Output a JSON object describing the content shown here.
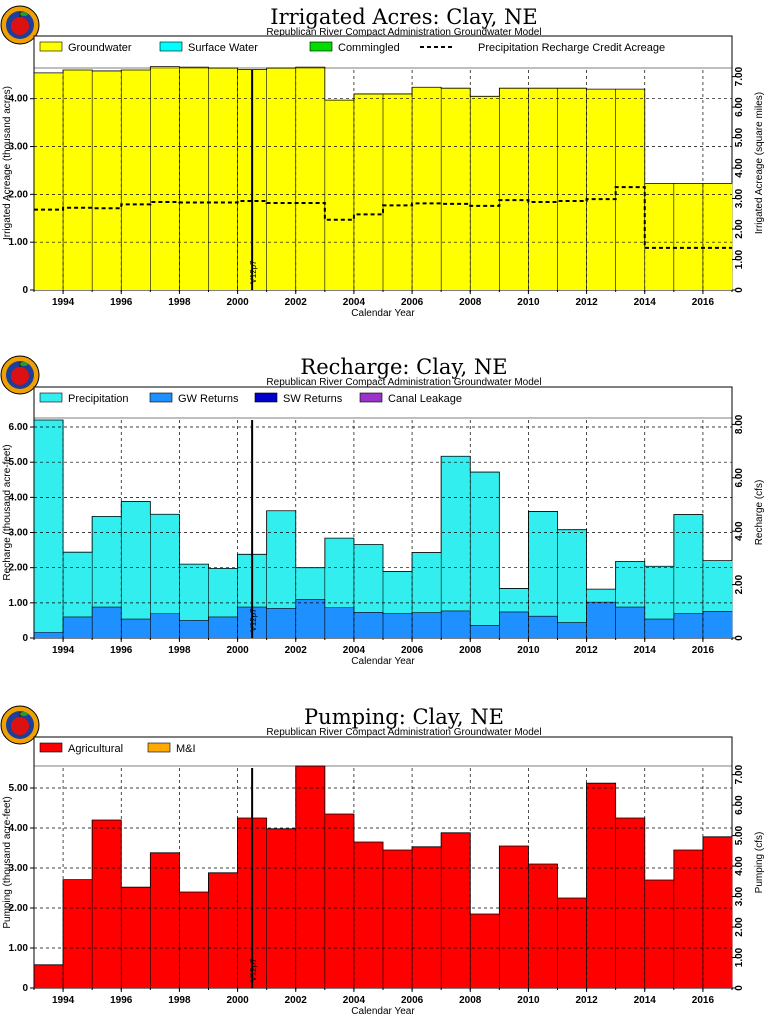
{
  "colors": {
    "groundwater": "#ffff00",
    "surface_water": "#00ffff",
    "commingled": "#00dd00",
    "precipitation": "#33eeee",
    "gw_returns": "#1e90ff",
    "sw_returns": "#0000cc",
    "canal_leakage": "#9933cc",
    "agricultural": "#ff0000",
    "mi": "#ffaa00",
    "logo_ring": "#f0a000",
    "logo_inner": "#1b3f9a",
    "logo_apple": "#dd1111"
  },
  "logo_icon": "apple-seal-icon",
  "chart_data": [
    {
      "type": "bar",
      "title": "Irrigated Acres: Clay, NE",
      "subtitle": "Republican River Compact Administration Groundwater Model",
      "xlabel": "Calendar Year",
      "ylabel": "Irrigated Acreage (thousand acres)",
      "y2label": "Irrigated Acreage (square miles)",
      "x": [
        1993,
        1994,
        1995,
        1996,
        1997,
        1998,
        1999,
        2000,
        2001,
        2002,
        2003,
        2004,
        2005,
        2006,
        2007,
        2008,
        2009,
        2010,
        2011,
        2012,
        2013,
        2014,
        2015,
        2016
      ],
      "xlim": [
        1993,
        2017
      ],
      "xticks": [
        "1994",
        "1996",
        "1998",
        "2000",
        "2002",
        "2004",
        "2006",
        "2008",
        "2010",
        "2012",
        "2014",
        "2016"
      ],
      "ylim": [
        0,
        4.6
      ],
      "yticks": [
        "0",
        "1.00",
        "2.00",
        "3.00",
        "4.00"
      ],
      "y2ticks": [
        "0",
        "1.00",
        "2.00",
        "3.00",
        "4.00",
        "5.00",
        "6.00",
        "7.00"
      ],
      "series": [
        {
          "name": "Groundwater",
          "values": [
            4.54,
            4.6,
            4.58,
            4.6,
            4.67,
            4.66,
            4.64,
            4.61,
            4.64,
            4.66,
            3.97,
            4.1,
            4.1,
            4.24,
            4.22,
            4.05,
            4.22,
            4.22,
            4.22,
            4.2,
            4.2,
            2.23,
            2.23,
            2.23
          ]
        },
        {
          "name": "Surface Water",
          "values": [
            0,
            0,
            0,
            0,
            0,
            0,
            0,
            0,
            0,
            0,
            0,
            0,
            0,
            0,
            0,
            0,
            0,
            0,
            0,
            0,
            0,
            0,
            0,
            0
          ]
        },
        {
          "name": "Commingled",
          "values": [
            0,
            0,
            0,
            0,
            0,
            0,
            0,
            0,
            0,
            0,
            0,
            0,
            0,
            0,
            0,
            0,
            0,
            0,
            0,
            0,
            0,
            0,
            0,
            0
          ]
        },
        {
          "name": "Precipitation Recharge Credit Acreage",
          "style": "dashed-step",
          "values": [
            1.68,
            1.72,
            1.71,
            1.79,
            1.84,
            1.83,
            1.83,
            1.86,
            1.82,
            1.82,
            1.47,
            1.58,
            1.77,
            1.81,
            1.8,
            1.76,
            1.88,
            1.84,
            1.86,
            1.9,
            2.15,
            0.88,
            0.88,
            0.88
          ]
        }
      ],
      "version_label": "V12p7",
      "version_year": 2001
    },
    {
      "type": "bar",
      "title": "Recharge: Clay, NE",
      "subtitle": "Republican River Compact Administration Groundwater Model",
      "xlabel": "Calendar Year",
      "ylabel": "Recharge (thousand acre-feet)",
      "y2label": "Recharge (cfs)",
      "x": [
        1993,
        1994,
        1995,
        1996,
        1997,
        1998,
        1999,
        2000,
        2001,
        2002,
        2003,
        2004,
        2005,
        2006,
        2007,
        2008,
        2009,
        2010,
        2011,
        2012,
        2013,
        2014,
        2015,
        2016
      ],
      "xlim": [
        1993,
        2017
      ],
      "xticks": [
        "1994",
        "1996",
        "1998",
        "2000",
        "2002",
        "2004",
        "2006",
        "2008",
        "2010",
        "2012",
        "2014",
        "2016"
      ],
      "ylim": [
        0,
        6.2
      ],
      "yticks": [
        "0",
        "1.00",
        "2.00",
        "3.00",
        "4.00",
        "5.00",
        "6.00"
      ],
      "y2ticks": [
        "0",
        "2.00",
        "4.00",
        "6.00",
        "8.00"
      ],
      "series": [
        {
          "name": "Precipitation",
          "values": [
            6.04,
            1.84,
            2.58,
            3.34,
            2.83,
            1.6,
            1.38,
            1.5,
            2.78,
            0.9,
            1.98,
            1.93,
            1.19,
            1.71,
            4.4,
            4.36,
            0.67,
            2.98,
            2.64,
            0.37,
            1.3,
            1.5,
            2.81,
            1.44
          ]
        },
        {
          "name": "GW Returns",
          "values": [
            0.16,
            0.6,
            0.88,
            0.54,
            0.69,
            0.5,
            0.6,
            0.88,
            0.84,
            1.1,
            0.86,
            0.73,
            0.7,
            0.72,
            0.77,
            0.36,
            0.74,
            0.62,
            0.44,
            1.02,
            0.88,
            0.54,
            0.7,
            0.76
          ]
        },
        {
          "name": "SW Returns",
          "values": [
            0,
            0,
            0,
            0,
            0,
            0,
            0,
            0,
            0,
            0,
            0,
            0,
            0,
            0,
            0,
            0,
            0,
            0,
            0,
            0,
            0,
            0,
            0,
            0
          ]
        },
        {
          "name": "Canal Leakage",
          "values": [
            0,
            0,
            0,
            0,
            0,
            0,
            0,
            0,
            0,
            0,
            0,
            0,
            0,
            0,
            0,
            0,
            0,
            0,
            0,
            0,
            0,
            0,
            0,
            0
          ]
        }
      ],
      "version_label": "V12p7",
      "version_year": 2001
    },
    {
      "type": "bar",
      "title": "Pumping: Clay, NE",
      "subtitle": "Republican River Compact Administration Groundwater Model",
      "xlabel": "Calendar Year",
      "ylabel": "Pumping (thousand acre-feet)",
      "y2label": "Pumping (cfs)",
      "x": [
        1993,
        1994,
        1995,
        1996,
        1997,
        1998,
        1999,
        2000,
        2001,
        2002,
        2003,
        2004,
        2005,
        2006,
        2007,
        2008,
        2009,
        2010,
        2011,
        2012,
        2013,
        2014,
        2015,
        2016
      ],
      "xlim": [
        1993,
        2017
      ],
      "xticks": [
        "1994",
        "1996",
        "1998",
        "2000",
        "2002",
        "2004",
        "2006",
        "2008",
        "2010",
        "2012",
        "2014",
        "2016"
      ],
      "ylim": [
        0,
        5.5
      ],
      "yticks": [
        "0",
        "1.00",
        "2.00",
        "3.00",
        "4.00",
        "5.00"
      ],
      "y2ticks": [
        "0",
        "1.00",
        "2.00",
        "3.00",
        "4.00",
        "5.00",
        "6.00",
        "7.00"
      ],
      "series": [
        {
          "name": "Agricultural",
          "values": [
            0.58,
            2.71,
            4.2,
            2.52,
            3.38,
            2.4,
            2.88,
            4.25,
            3.98,
            5.55,
            4.35,
            3.65,
            3.45,
            3.53,
            3.88,
            1.85,
            3.55,
            3.1,
            2.25,
            5.12,
            4.25,
            2.7,
            3.45,
            3.78
          ]
        },
        {
          "name": "M&I",
          "values": [
            0,
            0,
            0,
            0,
            0,
            0,
            0,
            0,
            0,
            0,
            0,
            0,
            0,
            0,
            0,
            0,
            0,
            0,
            0,
            0,
            0,
            0,
            0,
            0
          ]
        }
      ],
      "version_label": "V12p7",
      "version_year": 2001
    }
  ]
}
